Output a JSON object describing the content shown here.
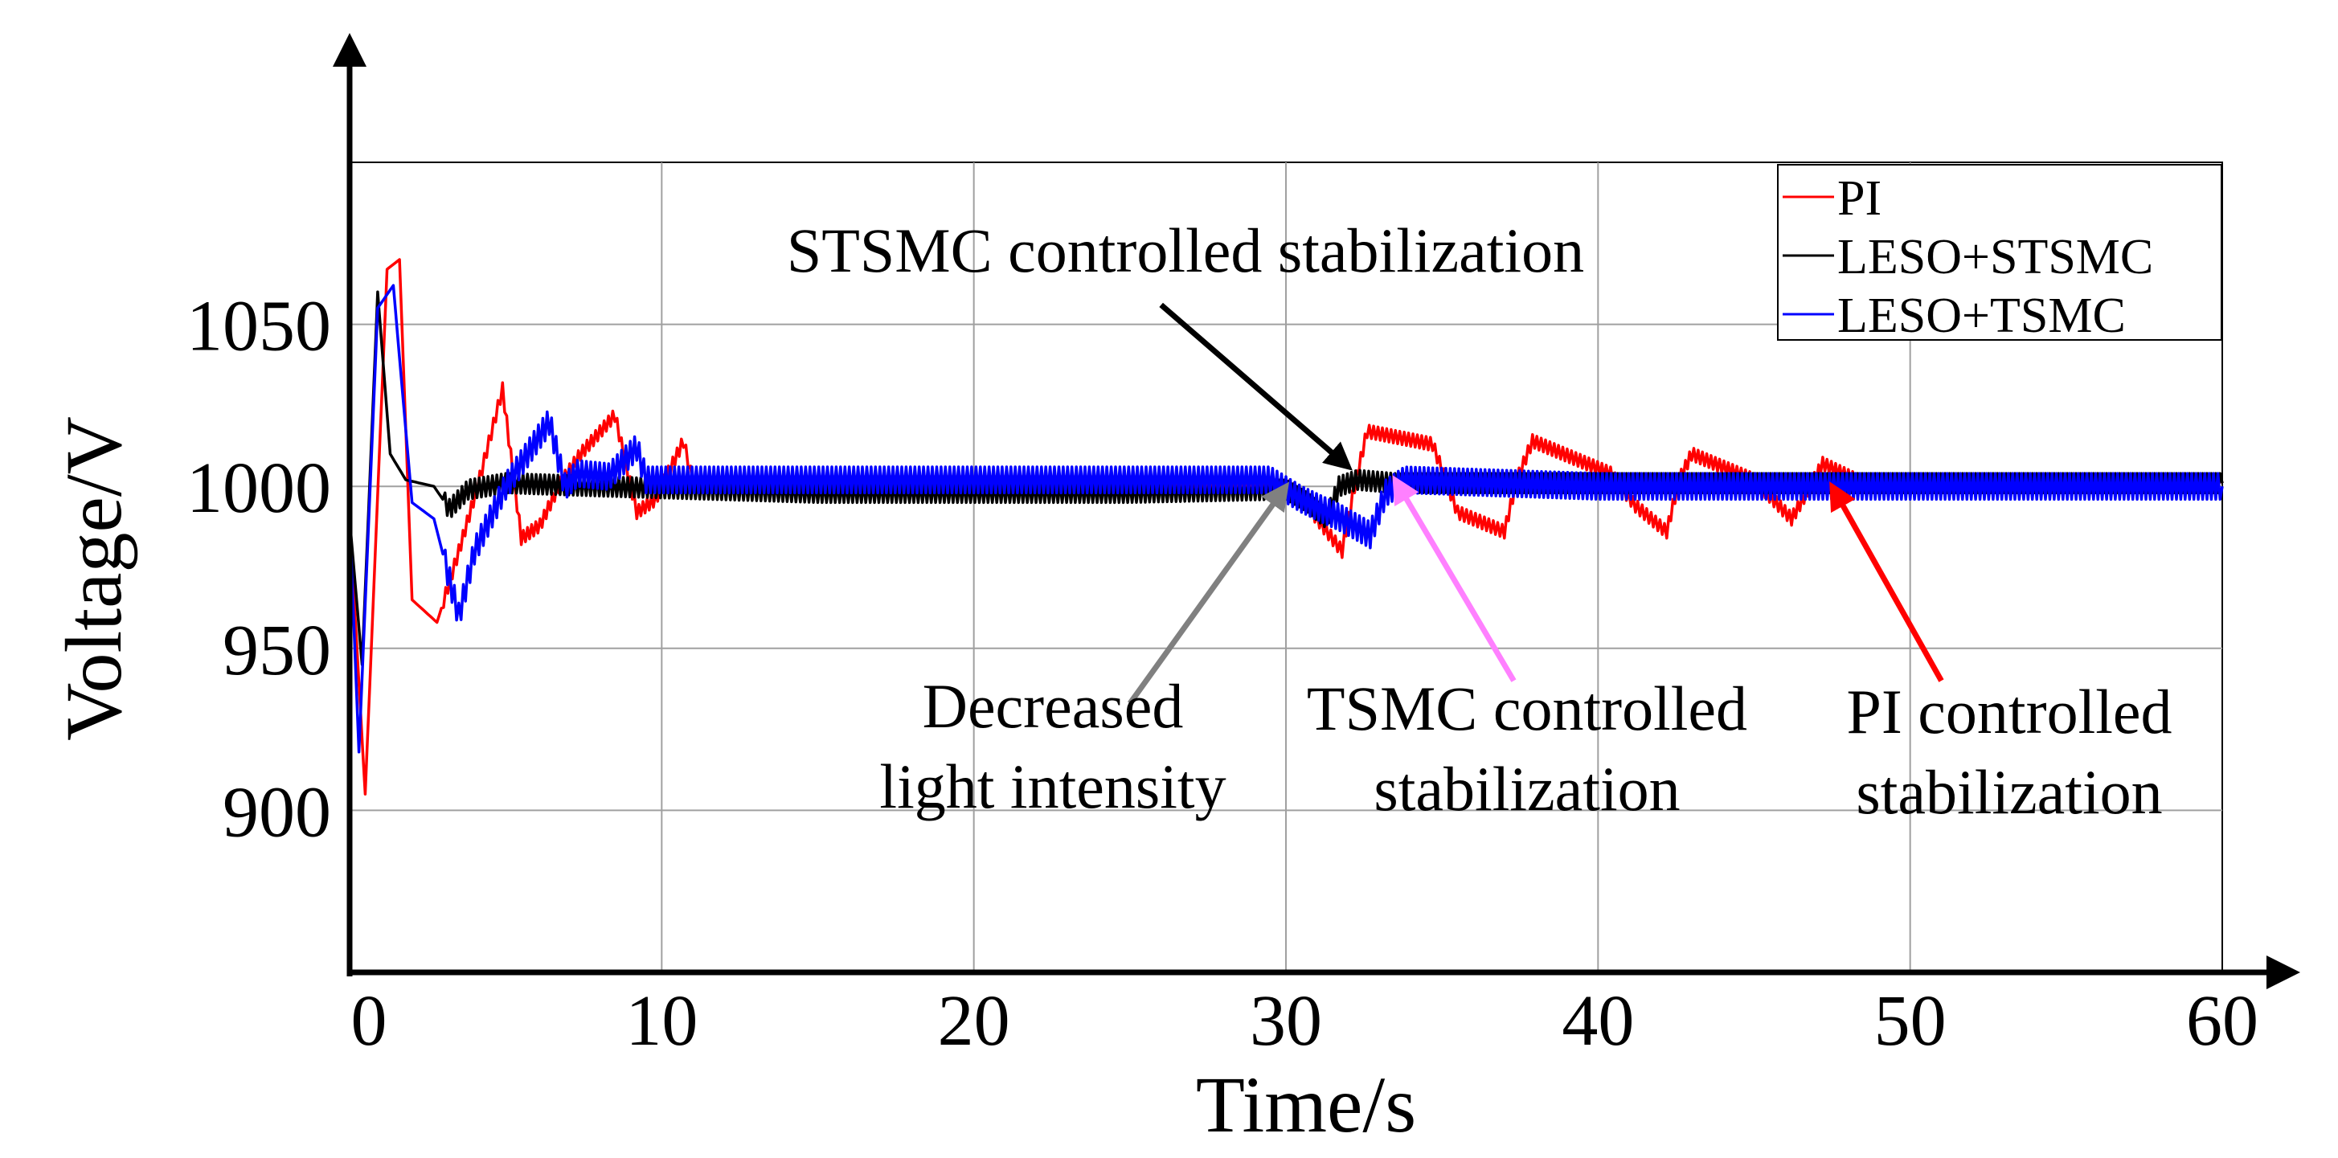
{
  "chart_data": {
    "type": "line",
    "xlabel": "Time/s",
    "ylabel": "Voltage/V",
    "xlim": [
      0,
      60
    ],
    "ylim": [
      850,
      1100
    ],
    "xticks": [
      0,
      10,
      20,
      30,
      40,
      50,
      60
    ],
    "yticks": [
      900,
      950,
      1000,
      1050
    ],
    "grid": true,
    "legend_position": "top-right",
    "series": [
      {
        "name": "PI",
        "color": "#ff0000",
        "ripple": 2,
        "points": [
          [
            0,
            990
          ],
          [
            0.5,
            905
          ],
          [
            1.2,
            1067
          ],
          [
            1.6,
            1070
          ],
          [
            2.0,
            965
          ],
          [
            2.8,
            958
          ],
          [
            3.5,
            980
          ],
          [
            4.1,
            1000
          ],
          [
            4.9,
            1030
          ],
          [
            5.5,
            984
          ],
          [
            6.1,
            988
          ],
          [
            6.7,
            1000
          ],
          [
            7.4,
            1010
          ],
          [
            8.5,
            1022
          ],
          [
            9.2,
            992
          ],
          [
            9.8,
            996
          ],
          [
            10.7,
            1014
          ],
          [
            11.0,
            1001
          ],
          [
            20,
            1001
          ],
          [
            28,
            1001
          ],
          [
            30.2,
            1000
          ],
          [
            31.0,
            990
          ],
          [
            31.8,
            980
          ],
          [
            32.2,
            1000
          ],
          [
            32.6,
            1017
          ],
          [
            34.7,
            1013
          ],
          [
            35.5,
            992
          ],
          [
            37.0,
            986
          ],
          [
            37.4,
            1002
          ],
          [
            37.9,
            1014
          ],
          [
            40.4,
            1004
          ],
          [
            41.2,
            994
          ],
          [
            42.2,
            986
          ],
          [
            42.6,
            1002
          ],
          [
            43.0,
            1010
          ],
          [
            45.0,
            1002
          ],
          [
            46.2,
            990
          ],
          [
            46.8,
            1000
          ],
          [
            47.2,
            1007
          ],
          [
            48.5,
            1001
          ],
          [
            60,
            1001
          ]
        ]
      },
      {
        "name": "LESO+STSMC",
        "color": "#000000",
        "ripple": 3,
        "points": [
          [
            0,
            990
          ],
          [
            0.4,
            945
          ],
          [
            0.9,
            1060
          ],
          [
            1.3,
            1010
          ],
          [
            1.8,
            1002
          ],
          [
            2.7,
            1000
          ],
          [
            3.2,
            993
          ],
          [
            3.8,
            999
          ],
          [
            5,
            1001
          ],
          [
            8,
            1000
          ],
          [
            15,
            998
          ],
          [
            25,
            998
          ],
          [
            30.0,
            999
          ],
          [
            30.7,
            995
          ],
          [
            31.3,
            990
          ],
          [
            31.7,
            1000
          ],
          [
            32.3,
            1002
          ],
          [
            33.5,
            1001
          ],
          [
            60,
            1001
          ]
        ]
      },
      {
        "name": "LESO+TSMC",
        "color": "#0000ff",
        "ripple": 4,
        "points": [
          [
            0,
            990
          ],
          [
            0.3,
            918
          ],
          [
            0.9,
            1055
          ],
          [
            1.4,
            1062
          ],
          [
            2.0,
            995
          ],
          [
            2.7,
            990
          ],
          [
            3.5,
            960
          ],
          [
            4.0,
            980
          ],
          [
            5.0,
            1000
          ],
          [
            6.4,
            1020
          ],
          [
            6.9,
            1000
          ],
          [
            7.3,
            1004
          ],
          [
            8.3,
            1003
          ],
          [
            9.2,
            1012
          ],
          [
            9.5,
            1002
          ],
          [
            20,
            1002
          ],
          [
            29.5,
            1002
          ],
          [
            30.5,
            996
          ],
          [
            31.8,
            990
          ],
          [
            32.7,
            985
          ],
          [
            33.2,
            998
          ],
          [
            33.8,
            1002
          ],
          [
            40,
            1000
          ],
          [
            50,
            1000
          ],
          [
            60,
            1000
          ]
        ]
      }
    ],
    "annotations": [
      {
        "id": "stsmc",
        "lines": [
          "STSMC controlled stabilization"
        ],
        "color": "#000000",
        "tail": [
          26.0,
          1056
        ],
        "head": [
          32.0,
          1006
        ]
      },
      {
        "id": "decreased",
        "lines": [
          "Decreased",
          "light intensity"
        ],
        "color": "#808080",
        "tail": [
          25.0,
          933
        ],
        "head": [
          30.0,
          1000
        ]
      },
      {
        "id": "tsmc",
        "lines": [
          "TSMC controlled",
          "stabilization"
        ],
        "color": "#ff80ff",
        "tail": [
          37.3,
          940
        ],
        "head": [
          33.5,
          1002
        ]
      },
      {
        "id": "pi",
        "lines": [
          "PI controlled",
          "stabilization"
        ],
        "color": "#ff0000",
        "tail": [
          51.0,
          940
        ],
        "head": [
          47.5,
          1000
        ]
      }
    ]
  }
}
